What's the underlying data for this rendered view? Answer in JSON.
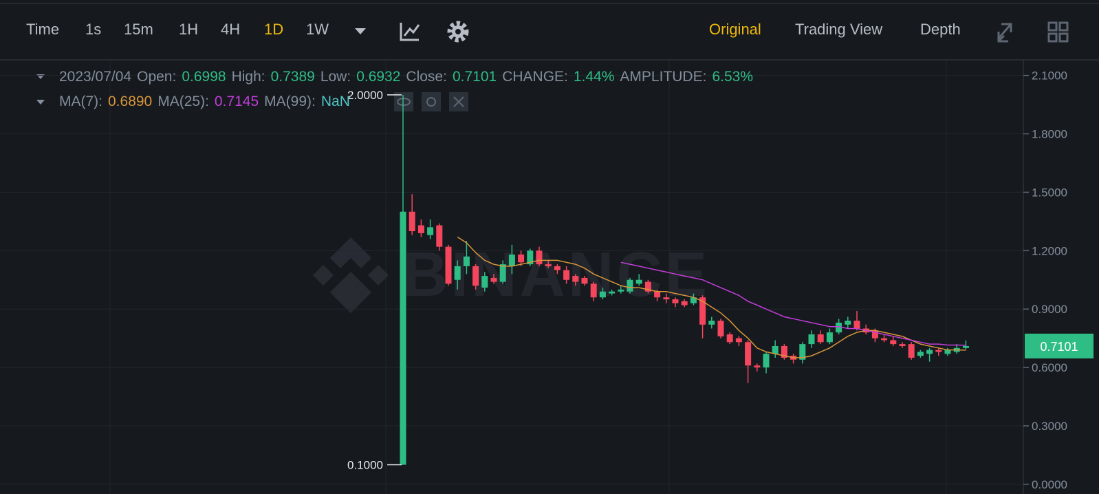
{
  "toolbar": {
    "intervals": [
      "Time",
      "1s",
      "15m",
      "1H",
      "4H",
      "1D",
      "1W"
    ],
    "views": [
      "Original",
      "Trading View",
      "Depth"
    ]
  },
  "info": {
    "date": "2023/07/04",
    "open_label": "Open:",
    "high_label": "High:",
    "low_label": "Low:",
    "close_label": "Close:",
    "change_label": "CHANGE:",
    "change": "1.44%",
    "amplitude_label": "AMPLITUDE:",
    "amplitude": "6.53%"
  },
  "chart_data": {
    "type": "candlestick",
    "watermark": "BINANCE",
    "up_color": "#2ebd85",
    "down_color": "#f6465d",
    "ylim": [
      -0.05,
      2.18
    ],
    "yticks": [
      {
        "value": 0,
        "label": "0.0000"
      },
      {
        "value": 0.3,
        "label": "0.3000"
      },
      {
        "value": 0.6,
        "label": "0.6000"
      },
      {
        "value": 0.9,
        "label": "0.9000"
      },
      {
        "value": 1.2,
        "label": "1.2000"
      },
      {
        "value": 1.5,
        "label": "1.5000"
      },
      {
        "value": 1.8,
        "label": "1.8000"
      },
      {
        "value": 2.1,
        "label": "2.1000"
      }
    ],
    "grid": true,
    "open": [
      0.1,
      1.4,
      1.33,
      1.28,
      1.33,
      1.22,
      1.05,
      1.12,
      1.12,
      1.01,
      1.06,
      1.04,
      1.12,
      1.18,
      1.13,
      1.2,
      1.13,
      1.12,
      1.1,
      1.07,
      1.06,
      1.03,
      0.96,
      0.98,
      0.99,
      0.99,
      1.03,
      1.04,
      0.99,
      0.96,
      0.95,
      0.94,
      0.93,
      0.96,
      0.82,
      0.84,
      0.77,
      0.75,
      0.73,
      0.61,
      0.6,
      0.67,
      0.71,
      0.66,
      0.64,
      0.72,
      0.77,
      0.73,
      0.78,
      0.82,
      0.84,
      0.8,
      0.79,
      0.75,
      0.74,
      0.72,
      0.72,
      0.66,
      0.67,
      0.69,
      0.67,
      0.68,
      0.6998
    ],
    "high": [
      2.0,
      1.49,
      1.36,
      1.36,
      1.34,
      1.23,
      1.15,
      1.25,
      1.13,
      1.09,
      1.08,
      1.15,
      1.23,
      1.2,
      1.21,
      1.22,
      1.15,
      1.13,
      1.12,
      1.08,
      1.07,
      1.04,
      1.01,
      1.0,
      1.02,
      1.06,
      1.08,
      1.05,
      1.0,
      0.98,
      0.96,
      0.95,
      0.98,
      0.97,
      0.86,
      0.85,
      0.78,
      0.76,
      0.74,
      0.62,
      0.68,
      0.74,
      0.72,
      0.67,
      0.73,
      0.79,
      0.79,
      0.8,
      0.85,
      0.86,
      0.89,
      0.82,
      0.8,
      0.77,
      0.76,
      0.73,
      0.73,
      0.69,
      0.7,
      0.7,
      0.7,
      0.72,
      0.7389
    ],
    "low": [
      0.1,
      1.28,
      1.27,
      1.26,
      1.2,
      1.02,
      1.0,
      1.08,
      1.0,
      0.99,
      1.03,
      1.03,
      1.08,
      1.12,
      1.12,
      1.12,
      1.11,
      1.08,
      1.03,
      1.02,
      1.02,
      0.94,
      0.95,
      0.97,
      0.98,
      0.98,
      1.02,
      0.98,
      0.94,
      0.93,
      0.91,
      0.91,
      0.92,
      0.75,
      0.8,
      0.75,
      0.72,
      0.71,
      0.52,
      0.58,
      0.57,
      0.65,
      0.64,
      0.62,
      0.62,
      0.7,
      0.72,
      0.72,
      0.77,
      0.8,
      0.79,
      0.77,
      0.73,
      0.73,
      0.71,
      0.7,
      0.64,
      0.65,
      0.63,
      0.66,
      0.66,
      0.67,
      0.6932
    ],
    "close": [
      1.4,
      1.3,
      1.29,
      1.32,
      1.22,
      1.03,
      1.12,
      1.17,
      1.02,
      1.07,
      1.04,
      1.13,
      1.18,
      1.14,
      1.2,
      1.13,
      1.12,
      1.1,
      1.05,
      1.04,
      1.03,
      0.96,
      0.99,
      0.99,
      1.0,
      1.05,
      1.05,
      0.99,
      0.96,
      0.95,
      0.93,
      0.92,
      0.96,
      0.82,
      0.84,
      0.76,
      0.73,
      0.73,
      0.61,
      0.6,
      0.67,
      0.71,
      0.65,
      0.64,
      0.72,
      0.77,
      0.73,
      0.78,
      0.83,
      0.84,
      0.8,
      0.78,
      0.75,
      0.74,
      0.72,
      0.71,
      0.65,
      0.68,
      0.69,
      0.68,
      0.69,
      0.7,
      0.7101
    ],
    "series": [
      {
        "name": "MA(7):",
        "color": "#d9963a",
        "value_label": "0.6890",
        "values": [
          null,
          null,
          null,
          null,
          null,
          null,
          1.27,
          1.24,
          1.19,
          1.15,
          1.13,
          1.12,
          1.12,
          1.13,
          1.14,
          1.15,
          1.15,
          1.15,
          1.14,
          1.13,
          1.11,
          1.08,
          1.06,
          1.04,
          1.02,
          1.01,
          1.01,
          1.0,
          0.99,
          0.99,
          0.98,
          0.97,
          0.96,
          0.94,
          0.91,
          0.88,
          0.84,
          0.79,
          0.75,
          0.7,
          0.68,
          0.67,
          0.66,
          0.65,
          0.65,
          0.66,
          0.68,
          0.7,
          0.73,
          0.76,
          0.78,
          0.79,
          0.79,
          0.78,
          0.77,
          0.76,
          0.74,
          0.72,
          0.71,
          0.7,
          0.69,
          0.69,
          0.689
        ]
      },
      {
        "name": "MA(25):",
        "color": "#c33ddb",
        "value_label": "0.7145",
        "values": [
          null,
          null,
          null,
          null,
          null,
          null,
          null,
          null,
          null,
          null,
          null,
          null,
          null,
          null,
          null,
          null,
          null,
          null,
          null,
          null,
          null,
          null,
          null,
          null,
          1.14,
          1.13,
          1.12,
          1.11,
          1.1,
          1.09,
          1.08,
          1.07,
          1.06,
          1.05,
          1.03,
          1.01,
          0.99,
          0.97,
          0.94,
          0.92,
          0.9,
          0.88,
          0.86,
          0.85,
          0.84,
          0.83,
          0.82,
          0.81,
          0.81,
          0.8,
          0.8,
          0.79,
          0.78,
          0.77,
          0.76,
          0.75,
          0.74,
          0.73,
          0.72,
          0.72,
          0.715,
          0.715,
          0.7145
        ]
      },
      {
        "name": "MA(99):",
        "color": "#4fc5c5",
        "value_label": "NaN"
      }
    ],
    "annotations": [
      {
        "value": 2.0,
        "label": "2.0000"
      },
      {
        "value": 0.1,
        "label": "0.1000"
      }
    ]
  }
}
